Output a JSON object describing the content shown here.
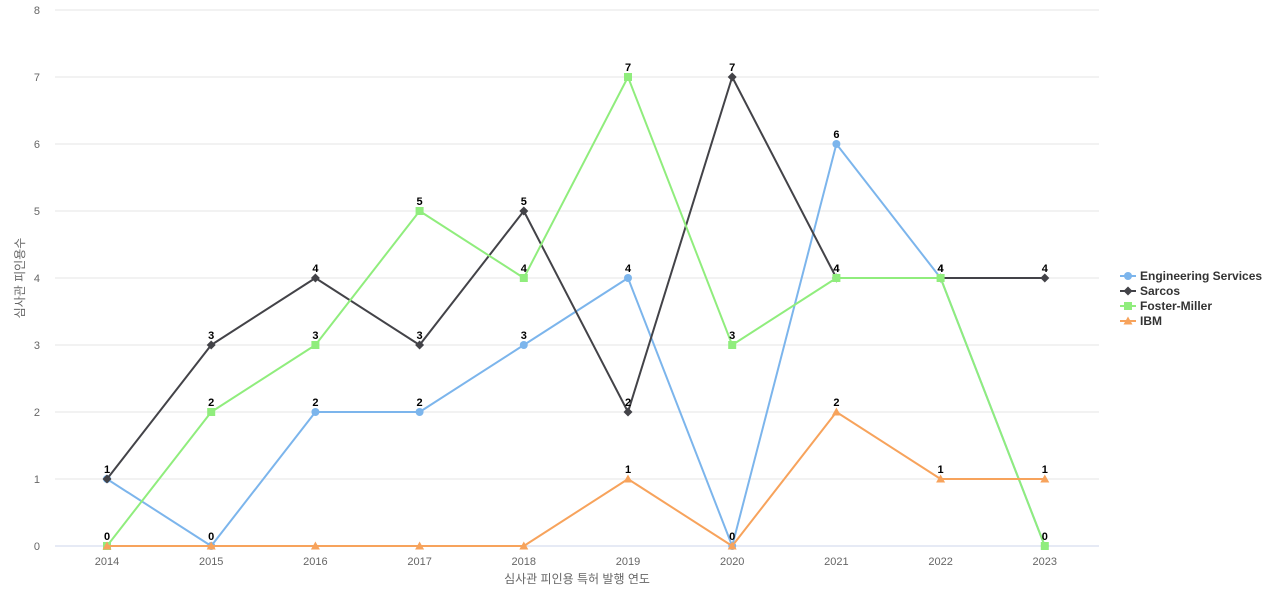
{
  "chart_data": {
    "type": "line",
    "title": "",
    "xlabel": "심사관 피인용 특허 발행 연도",
    "ylabel": "심사관 피인용수",
    "categories": [
      "2014",
      "2015",
      "2016",
      "2017",
      "2018",
      "2019",
      "2020",
      "2021",
      "2022",
      "2023"
    ],
    "ylim": [
      0,
      8
    ],
    "yticks": [
      0,
      1,
      2,
      3,
      4,
      5,
      6,
      7,
      8
    ],
    "grid": true,
    "legend_position": "right",
    "series": [
      {
        "name": "Engineering Services",
        "color": "#7cb5ec",
        "marker": "circle",
        "values": [
          1,
          0,
          2,
          2,
          3,
          4,
          0,
          6,
          4,
          0
        ],
        "labeled": [
          false,
          true,
          true,
          true,
          true,
          true,
          true,
          true,
          false,
          false
        ]
      },
      {
        "name": "Sarcos",
        "color": "#434348",
        "marker": "diamond",
        "values": [
          1,
          3,
          4,
          3,
          5,
          2,
          7,
          4,
          4,
          4
        ],
        "labeled": [
          true,
          true,
          true,
          true,
          true,
          true,
          true,
          true,
          true,
          true
        ]
      },
      {
        "name": "Foster-Miller",
        "color": "#90ed7d",
        "marker": "square",
        "values": [
          0,
          2,
          3,
          5,
          4,
          7,
          3,
          4,
          4,
          0
        ],
        "labeled": [
          true,
          true,
          true,
          true,
          true,
          true,
          true,
          true,
          true,
          true
        ]
      },
      {
        "name": "IBM",
        "color": "#f7a35c",
        "marker": "triangle",
        "values": [
          0,
          0,
          0,
          0,
          0,
          1,
          0,
          2,
          1,
          1
        ],
        "labeled": [
          false,
          false,
          false,
          false,
          false,
          true,
          false,
          true,
          true,
          true
        ]
      }
    ]
  }
}
